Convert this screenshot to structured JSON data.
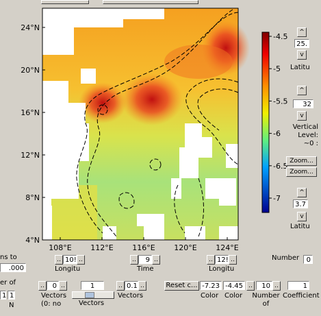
{
  "map": {
    "yticks": [
      "24°N",
      "20°N",
      "16°N",
      "12°N",
      "8°N",
      "4°N"
    ],
    "xticks": [
      "108°E",
      "112°E",
      "116°E",
      "120°E",
      "124°E"
    ]
  },
  "colorbar": {
    "labels": [
      "-4.5",
      "-5",
      "-5.5",
      "-6",
      "-6.5",
      "-7"
    ]
  },
  "right_panel": {
    "lat_top": "25.",
    "lat_top_label": "Latitu",
    "level": "32",
    "level_label": "Vertical Level: ~0 :",
    "zoom_in": "Zoom...",
    "zoom_out": "Zoom...",
    "lat_bottom": "3.7",
    "lat_bottom_label": "Latitu",
    "number_label": "Number",
    "number_value": "0"
  },
  "bottom_panel": {
    "lon_left": "10!",
    "lon_left_label": "Longitu",
    "time": "9",
    "time_label": "Time",
    "lon_right": "12!",
    "lon_right_label": "Longitu",
    "vectors_a": "0",
    "vectors_a_label": "Vectors (0: no",
    "vectors_b": "1",
    "vectors_b_label": "Vectors",
    "vectors_c": "0.1",
    "vectors_c_label": "Vectors",
    "reset": "Reset c...",
    "color_min": "-7.23",
    "color_min_label": "Color",
    "color_max": "-4.45",
    "color_max_label": "Color",
    "number_of": "10",
    "number_of_label": "Number of",
    "coef": "1",
    "coef_label": "Coefficient"
  },
  "left_panel": {
    "line1": "ns to",
    "field1": ".000",
    "line2": "er of",
    "field2a": "1",
    "field2b": "1",
    "line3": "N"
  }
}
